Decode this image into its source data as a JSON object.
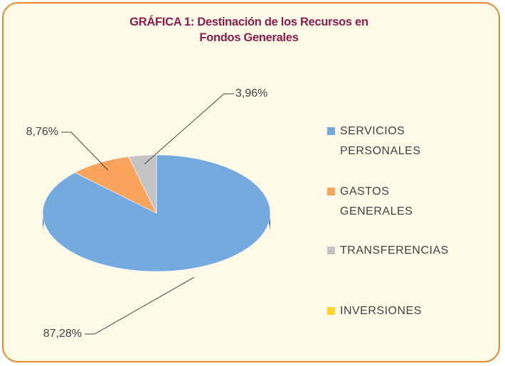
{
  "chart_data": {
    "type": "pie",
    "title": "GRÁFICA 1: Destinación de los Recursos en Fondos Generales",
    "categories": [
      "SERVICIOS PERSONALES",
      "GASTOS GENERALES",
      "TRANSFERENCIAS",
      "INVERSIONES"
    ],
    "values": [
      87.28,
      8.76,
      3.96,
      0
    ],
    "value_labels": [
      "87,28%",
      "8,76%",
      "3,96%",
      null
    ],
    "colors": [
      "#74aade",
      "#f9a45c",
      "#c4c4c4",
      "#ffd42a"
    ],
    "legend": "right"
  }
}
